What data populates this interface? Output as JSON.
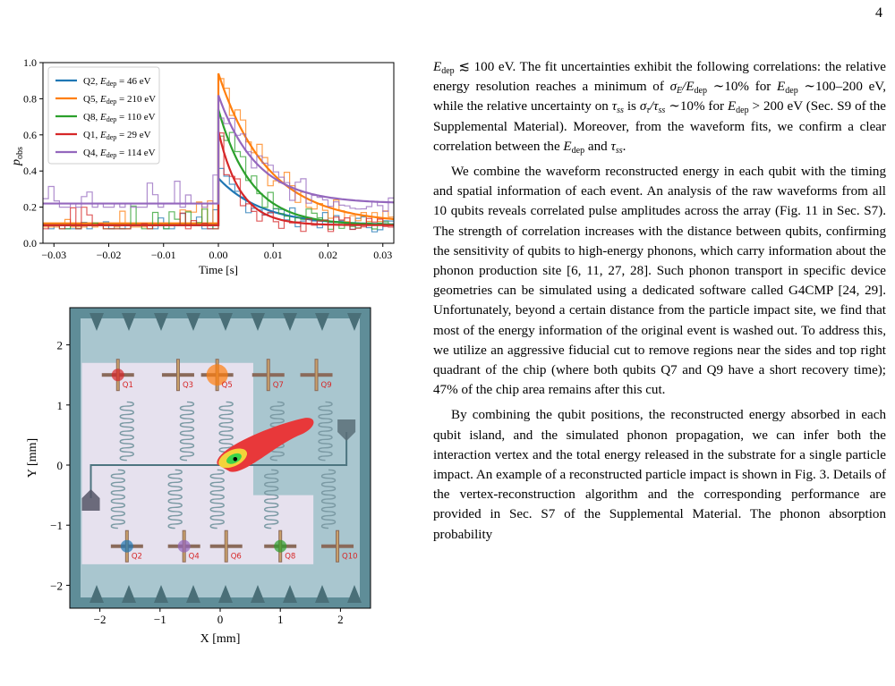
{
  "page": {
    "number": "4"
  },
  "figure_top": {
    "ylabel": "p",
    "ylabel_sub": "obs",
    "xlabel": "Time [s]",
    "xticks": [
      "−0.03",
      "−0.02",
      "−0.01",
      "0.00",
      "0.01",
      "0.02",
      "0.03"
    ],
    "yticks": [
      "0.0",
      "0.2",
      "0.4",
      "0.6",
      "0.8",
      "1.0"
    ],
    "legend": [
      {
        "name": "Q2",
        "energy": "46 eV",
        "color": "#1f77b4"
      },
      {
        "name": "Q5",
        "energy": "210 eV",
        "color": "#ff7f0e"
      },
      {
        "name": "Q8",
        "energy": "110 eV",
        "color": "#2ca02c"
      },
      {
        "name": "Q1",
        "energy": "29 eV",
        "color": "#d62728"
      },
      {
        "name": "Q4",
        "energy": "114 eV",
        "color": "#9467bd"
      }
    ],
    "legend_energy_symbol": "E",
    "legend_energy_sub": "dep"
  },
  "chart_data": [
    {
      "type": "line",
      "xlabel": "Time [s]",
      "ylabel": "p_obs",
      "xlim": [
        -0.032,
        0.032
      ],
      "ylim": [
        0,
        1.0
      ],
      "grid": false,
      "legend_position": "top-left",
      "series": [
        {
          "name": "Q2, E_dep = 46 eV",
          "color": "#1f77b4",
          "baseline": 0.1,
          "peak": 0.36,
          "tau": 0.008,
          "noise_top": 0.2
        },
        {
          "name": "Q5, E_dep = 210 eV",
          "color": "#ff7f0e",
          "baseline": 0.11,
          "peak": 0.94,
          "tau": 0.009,
          "noise_top": 0.26
        },
        {
          "name": "Q8, E_dep = 110 eV",
          "color": "#2ca02c",
          "baseline": 0.1,
          "peak": 0.74,
          "tau": 0.006,
          "noise_top": 0.22
        },
        {
          "name": "Q1, E_dep = 29 eV",
          "color": "#d62728",
          "baseline": 0.1,
          "peak": 0.62,
          "tau": 0.004,
          "noise_top": 0.2
        },
        {
          "name": "Q4, E_dep = 114 eV",
          "color": "#9467bd",
          "baseline": 0.22,
          "peak": 0.82,
          "tau": 0.007,
          "noise_top": 0.38
        }
      ]
    }
  ],
  "figure_bottom": {
    "xlabel": "X [mm]",
    "ylabel": "Y [mm]",
    "xticks": [
      "−2",
      "−1",
      "0",
      "1",
      "2"
    ],
    "yticks": [
      "2",
      "1",
      "0",
      "−1",
      "−2"
    ],
    "qubits_top": [
      "Q1",
      "Q3",
      "Q5",
      "Q7",
      "Q9"
    ],
    "qubits_bottom": [
      "Q2",
      "Q4",
      "Q6",
      "Q8",
      "Q10"
    ],
    "highlight_colors": {
      "Q1": "#d62728",
      "Q5": "#ff7f0e",
      "Q2": "#1f77b4",
      "Q4": "#9467bd",
      "Q8": "#2ca02c"
    }
  },
  "body_text": {
    "p1": "E_dep ≲ 100 eV. The fit uncertainties exhibit the following correlations: the relative energy resolution reaches a minimum of σ_E/E_dep ∼10% for E_dep ∼100–200 eV, while the relative uncertainty on τ_ss is σ_τ/τ_ss ∼10% for E_dep > 200 eV (Sec. S9 of the Supplemental Material). Moreover, from the waveform fits, we confirm a clear correlation between the E_dep and τ_ss.",
    "p1_parts": {
      "a": "≲ 100 eV. The fit uncertainties exhibit the following correlations: the relative energy resolution reaches a minimum of ",
      "b": " ∼10% for ",
      "c": " ∼100–200 eV, while the relative uncertainty on ",
      "d": " is ",
      "e": " ∼10% for ",
      "f": " > 200 eV (Sec. S9 of the Supplemental Material). Moreover, from the waveform fits, we confirm a clear correlation between the ",
      "g": " and ",
      "h": "."
    },
    "p2": "We combine the waveform reconstructed energy in each qubit with the timing and spatial information of each event. An analysis of the raw waveforms from all 10 qubits reveals correlated pulse amplitudes across the array (Fig. 11 in Sec. S7). The strength of correlation increases with the distance between qubits, confirming the sensitivity of qubits to high-energy phonons, which carry information about the phonon production site [6, 11, 27, 28]. Such phonon transport in specific device geometries can be simulated using a dedicated software called G4CMP [24, 29]. Unfortunately, beyond a certain distance from the particle impact site, we find that most of the energy information of the original event is washed out. To address this, we utilize an aggressive fiducial cut to remove regions near the sides and top right quadrant of the chip (where both qubits Q7 and Q9 have a short recovery time); 47% of the chip area remains after this cut.",
    "p3": "By combining the qubit positions, the reconstructed energy absorbed in each qubit island, and the simulated phonon propagation, we can infer both the interaction vertex and the total energy released in the substrate for a single particle impact. An example of a reconstructed particle impact is shown in Fig. 3. Details of the vertex-reconstruction algorithm and the corresponding performance are provided in Sec. S7 of the Supplemental Material. The phonon absorption probability"
  }
}
